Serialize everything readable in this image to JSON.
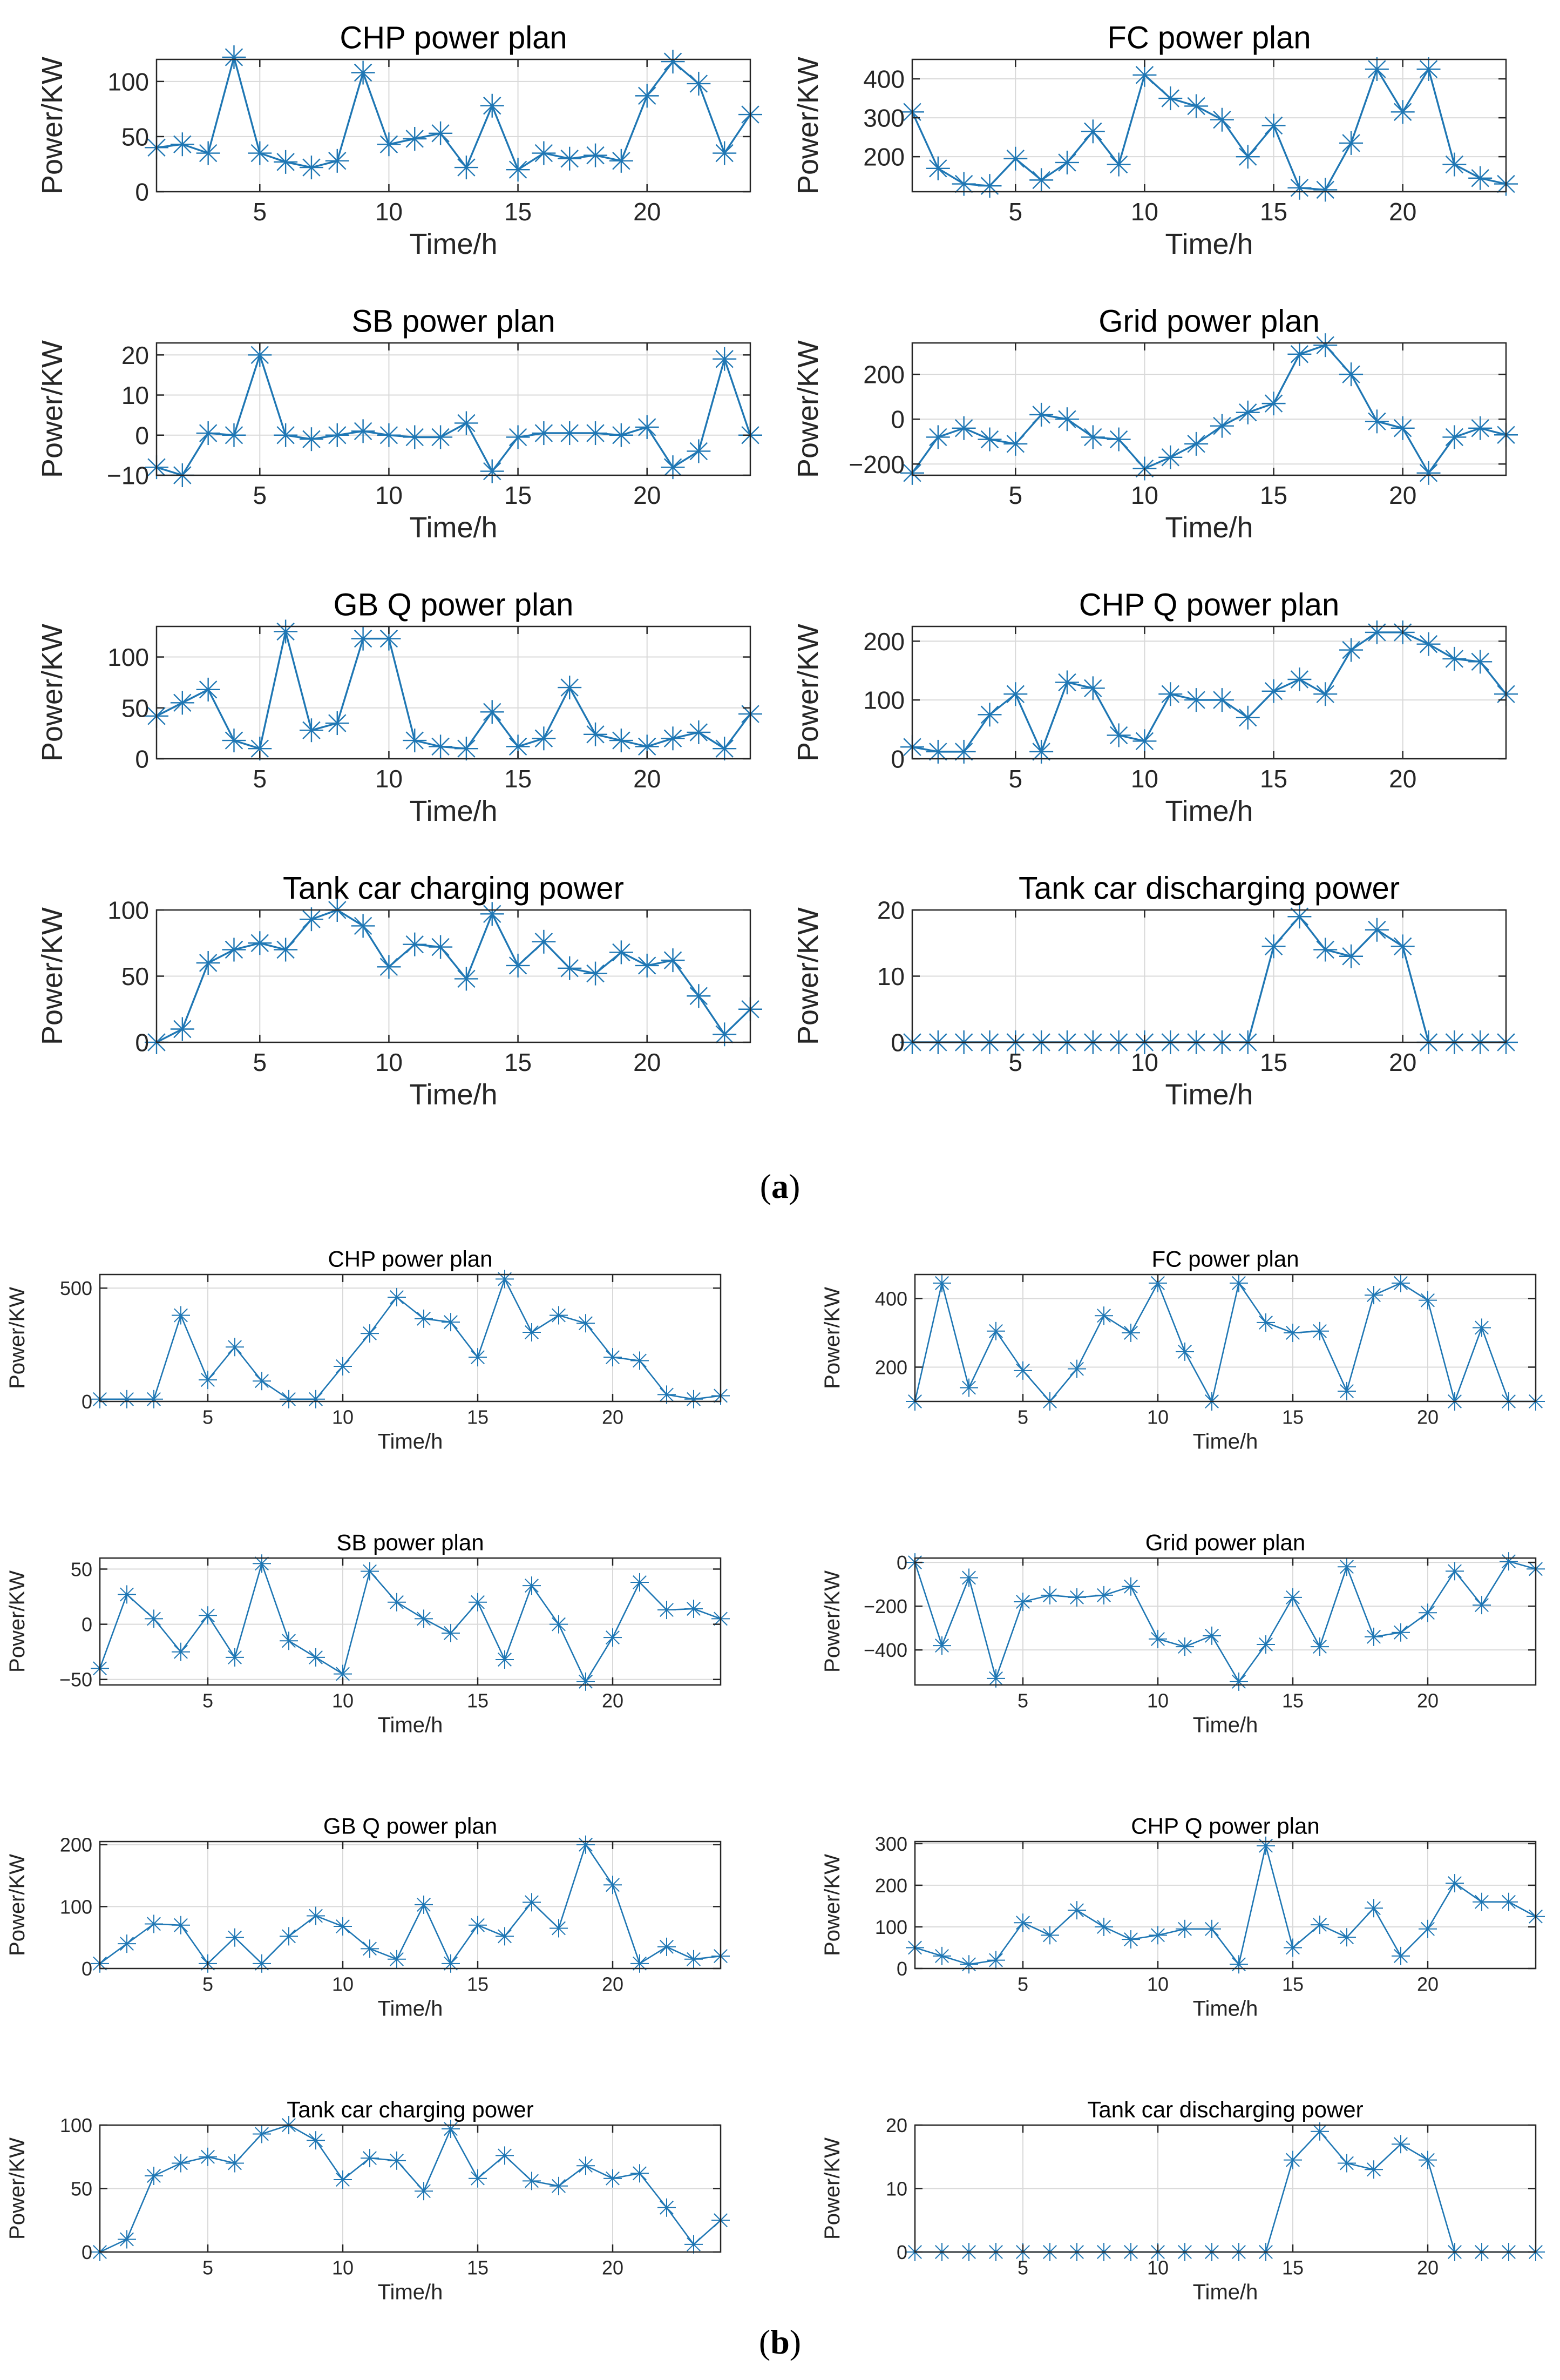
{
  "figure": {
    "panel_a_label": "a",
    "panel_b_label": "b"
  },
  "style": {
    "series_color": "#1f77b4",
    "grid_color": "#d9d9d9",
    "axis_color": "#262626"
  },
  "chart_data": [
    {
      "panel": "a",
      "type": "line",
      "title": "CHP power plan",
      "xlabel": "Time/h",
      "ylabel": "Power/KW",
      "xlim": [
        1,
        24
      ],
      "ylim": [
        0,
        120
      ],
      "xticks": [
        5,
        10,
        15,
        20
      ],
      "yticks": [
        0,
        50,
        100
      ],
      "grid": true,
      "marker": "asterisk",
      "x": [
        1,
        2,
        3,
        4,
        5,
        6,
        7,
        8,
        9,
        10,
        11,
        12,
        13,
        14,
        15,
        16,
        17,
        18,
        19,
        20,
        21,
        22,
        23,
        24
      ],
      "values": [
        40,
        43,
        35,
        122,
        35,
        27,
        22,
        28,
        108,
        43,
        48,
        53,
        22,
        78,
        20,
        35,
        30,
        33,
        28,
        87,
        118,
        98,
        35,
        70
      ]
    },
    {
      "panel": "a",
      "type": "line",
      "title": "FC power plan",
      "xlabel": "Time/h",
      "ylabel": "Power/KW",
      "xlim": [
        1,
        24
      ],
      "ylim": [
        110,
        450
      ],
      "xticks": [
        5,
        10,
        15,
        20
      ],
      "yticks": [
        200,
        300,
        400
      ],
      "grid": true,
      "marker": "asterisk",
      "x": [
        1,
        2,
        3,
        4,
        5,
        6,
        7,
        8,
        9,
        10,
        11,
        12,
        13,
        14,
        15,
        16,
        17,
        18,
        19,
        20,
        21,
        22,
        23,
        24
      ],
      "values": [
        315,
        170,
        130,
        125,
        195,
        140,
        185,
        265,
        180,
        410,
        350,
        330,
        295,
        200,
        280,
        120,
        115,
        235,
        425,
        315,
        425,
        180,
        145,
        130
      ]
    },
    {
      "panel": "a",
      "type": "line",
      "title": "SB power plan",
      "xlabel": "Time/h",
      "ylabel": "Power/KW",
      "xlim": [
        1,
        24
      ],
      "ylim": [
        -10,
        23
      ],
      "xticks": [
        5,
        10,
        15,
        20
      ],
      "yticks": [
        -10,
        0,
        10,
        20
      ],
      "grid": true,
      "marker": "asterisk",
      "x": [
        1,
        2,
        3,
        4,
        5,
        6,
        7,
        8,
        9,
        10,
        11,
        12,
        13,
        14,
        15,
        16,
        17,
        18,
        19,
        20,
        21,
        22,
        23,
        24
      ],
      "values": [
        -8,
        -10,
        0.5,
        0,
        20,
        0,
        -1,
        0,
        1,
        0,
        -0.5,
        -0.5,
        3,
        -9,
        -0.5,
        0.5,
        0.5,
        0.5,
        0,
        2,
        -8,
        -4,
        19,
        0
      ]
    },
    {
      "panel": "a",
      "type": "line",
      "title": "Grid power plan",
      "xlabel": "Time/h",
      "ylabel": "Power/KW",
      "xlim": [
        1,
        24
      ],
      "ylim": [
        -250,
        340
      ],
      "xticks": [
        5,
        10,
        15,
        20
      ],
      "yticks": [
        -200,
        0,
        200
      ],
      "grid": true,
      "marker": "asterisk",
      "x": [
        1,
        2,
        3,
        4,
        5,
        6,
        7,
        8,
        9,
        10,
        11,
        12,
        13,
        14,
        15,
        16,
        17,
        18,
        19,
        20,
        21,
        22,
        23,
        24
      ],
      "values": [
        -240,
        -80,
        -40,
        -90,
        -110,
        20,
        0,
        -80,
        -90,
        -220,
        -170,
        -110,
        -30,
        30,
        70,
        290,
        330,
        200,
        -10,
        -40,
        -240,
        -80,
        -40,
        -70
      ]
    },
    {
      "panel": "a",
      "type": "line",
      "title": "GB Q power plan",
      "xlabel": "Time/h",
      "ylabel": "Power/KW",
      "xlim": [
        1,
        24
      ],
      "ylim": [
        0,
        130
      ],
      "xticks": [
        5,
        10,
        15,
        20
      ],
      "yticks": [
        0,
        50,
        100
      ],
      "grid": true,
      "marker": "asterisk",
      "x": [
        1,
        2,
        3,
        4,
        5,
        6,
        7,
        8,
        9,
        10,
        11,
        12,
        13,
        14,
        15,
        16,
        17,
        18,
        19,
        20,
        21,
        22,
        23,
        24
      ],
      "values": [
        42,
        55,
        68,
        18,
        10,
        125,
        28,
        35,
        118,
        118,
        18,
        12,
        10,
        46,
        12,
        20,
        70,
        24,
        18,
        12,
        20,
        26,
        10,
        44
      ]
    },
    {
      "panel": "a",
      "type": "line",
      "title": "CHP Q power plan",
      "xlabel": "Time/h",
      "ylabel": "Power/KW",
      "xlim": [
        1,
        24
      ],
      "ylim": [
        0,
        225
      ],
      "xticks": [
        5,
        10,
        15,
        20
      ],
      "yticks": [
        0,
        100,
        200
      ],
      "grid": true,
      "marker": "asterisk",
      "x": [
        1,
        2,
        3,
        4,
        5,
        6,
        7,
        8,
        9,
        10,
        11,
        12,
        13,
        14,
        15,
        16,
        17,
        18,
        19,
        20,
        21,
        22,
        23,
        24
      ],
      "values": [
        20,
        12,
        12,
        75,
        110,
        12,
        130,
        120,
        40,
        30,
        110,
        100,
        100,
        70,
        115,
        135,
        110,
        185,
        215,
        215,
        195,
        170,
        165,
        110
      ]
    },
    {
      "panel": "a",
      "type": "line",
      "title": "Tank car charging power",
      "xlabel": "Time/h",
      "ylabel": "Power/KW",
      "xlim": [
        1,
        24
      ],
      "ylim": [
        0,
        100
      ],
      "xticks": [
        5,
        10,
        15,
        20
      ],
      "yticks": [
        0,
        50,
        100
      ],
      "grid": true,
      "marker": "asterisk",
      "x": [
        1,
        2,
        3,
        4,
        5,
        6,
        7,
        8,
        9,
        10,
        11,
        12,
        13,
        14,
        15,
        16,
        17,
        18,
        19,
        20,
        21,
        22,
        23,
        24
      ],
      "values": [
        0,
        10,
        60,
        70,
        75,
        70,
        93,
        100,
        88,
        57,
        74,
        72,
        48,
        97,
        58,
        76,
        56,
        52,
        68,
        58,
        62,
        35,
        6,
        25
      ]
    },
    {
      "panel": "a",
      "type": "line",
      "title": "Tank car discharging power",
      "xlabel": "Time/h",
      "ylabel": "Power/KW",
      "xlim": [
        1,
        24
      ],
      "ylim": [
        0,
        20
      ],
      "xticks": [
        5,
        10,
        15,
        20
      ],
      "yticks": [
        0,
        10,
        20
      ],
      "grid": true,
      "marker": "asterisk",
      "x": [
        1,
        2,
        3,
        4,
        5,
        6,
        7,
        8,
        9,
        10,
        11,
        12,
        13,
        14,
        15,
        16,
        17,
        18,
        19,
        20,
        21,
        22,
        23,
        24
      ],
      "values": [
        0,
        0,
        0,
        0,
        0,
        0,
        0,
        0,
        0,
        0,
        0,
        0,
        0,
        0,
        14.5,
        19,
        14,
        13,
        17,
        14.5,
        0,
        0,
        0,
        0
      ]
    },
    {
      "panel": "b",
      "type": "line",
      "title": "CHP power plan",
      "xlabel": "Time/h",
      "ylabel": "Power/KW",
      "xlim": [
        1,
        24
      ],
      "ylim": [
        0,
        560
      ],
      "xticks": [
        5,
        10,
        15,
        20
      ],
      "yticks": [
        0,
        500
      ],
      "grid": true,
      "marker": "asterisk",
      "x": [
        1,
        2,
        3,
        4,
        5,
        6,
        7,
        8,
        9,
        10,
        11,
        12,
        13,
        14,
        15,
        16,
        17,
        18,
        19,
        20,
        21,
        22,
        23,
        24
      ],
      "values": [
        10,
        10,
        10,
        380,
        95,
        240,
        90,
        10,
        10,
        155,
        300,
        460,
        365,
        350,
        195,
        540,
        305,
        380,
        345,
        195,
        180,
        30,
        10,
        25
      ]
    },
    {
      "panel": "b",
      "type": "line",
      "title": "FC power plan",
      "xlabel": "Time/h",
      "ylabel": "Power/KW",
      "xlim": [
        1,
        24
      ],
      "ylim": [
        100,
        470
      ],
      "xticks": [
        5,
        10,
        15,
        20
      ],
      "yticks": [
        200,
        400
      ],
      "grid": true,
      "marker": "asterisk",
      "x": [
        1,
        2,
        3,
        4,
        5,
        6,
        7,
        8,
        9,
        10,
        11,
        12,
        13,
        14,
        15,
        16,
        17,
        18,
        19,
        20,
        21,
        22,
        23,
        24
      ],
      "values": [
        100,
        445,
        140,
        305,
        190,
        100,
        195,
        350,
        300,
        445,
        245,
        100,
        445,
        330,
        300,
        305,
        130,
        410,
        445,
        395,
        100,
        315,
        100,
        100
      ]
    },
    {
      "panel": "b",
      "type": "line",
      "title": "SB power plan",
      "xlabel": "Time/h",
      "ylabel": "Power/KW",
      "xlim": [
        1,
        24
      ],
      "ylim": [
        -55,
        60
      ],
      "xticks": [
        5,
        10,
        15,
        20
      ],
      "yticks": [
        -50,
        0,
        50
      ],
      "grid": true,
      "marker": "asterisk",
      "x": [
        1,
        2,
        3,
        4,
        5,
        6,
        7,
        8,
        9,
        10,
        11,
        12,
        13,
        14,
        15,
        16,
        17,
        18,
        19,
        20,
        21,
        22,
        23,
        24
      ],
      "values": [
        -40,
        27,
        5,
        -25,
        8,
        -30,
        55,
        -15,
        -30,
        -45,
        48,
        20,
        5,
        -8,
        20,
        -32,
        35,
        0,
        -52,
        -12,
        38,
        13,
        14,
        5
      ]
    },
    {
      "panel": "b",
      "type": "line",
      "title": "Grid power plan",
      "xlabel": "Time/h",
      "ylabel": "Power/KW",
      "xlim": [
        1,
        24
      ],
      "ylim": [
        -560,
        20
      ],
      "xticks": [
        5,
        10,
        15,
        20
      ],
      "yticks": [
        -400,
        -200,
        0
      ],
      "grid": true,
      "marker": "asterisk",
      "x": [
        1,
        2,
        3,
        4,
        5,
        6,
        7,
        8,
        9,
        10,
        11,
        12,
        13,
        14,
        15,
        16,
        17,
        18,
        19,
        20,
        21,
        22,
        23,
        24
      ],
      "values": [
        0,
        -380,
        -70,
        -530,
        -180,
        -150,
        -160,
        -150,
        -110,
        -350,
        -385,
        -335,
        -545,
        -375,
        -160,
        -385,
        -20,
        -340,
        -320,
        -230,
        -40,
        -195,
        5,
        -30
      ]
    },
    {
      "panel": "b",
      "type": "line",
      "title": "GB Q power plan",
      "xlabel": "Time/h",
      "ylabel": "Power/KW",
      "xlim": [
        1,
        24
      ],
      "ylim": [
        0,
        205
      ],
      "xticks": [
        5,
        10,
        15,
        20
      ],
      "yticks": [
        0,
        100,
        200
      ],
      "grid": true,
      "marker": "asterisk",
      "x": [
        1,
        2,
        3,
        4,
        5,
        6,
        7,
        8,
        9,
        10,
        11,
        12,
        13,
        14,
        15,
        16,
        17,
        18,
        19,
        20,
        21,
        22,
        23,
        24
      ],
      "values": [
        8,
        40,
        72,
        70,
        8,
        50,
        8,
        52,
        85,
        68,
        32,
        15,
        103,
        8,
        70,
        52,
        107,
        65,
        200,
        135,
        8,
        35,
        15,
        20
      ]
    },
    {
      "panel": "b",
      "type": "line",
      "title": "CHP Q power plan",
      "xlabel": "Time/h",
      "ylabel": "Power/KW",
      "xlim": [
        1,
        24
      ],
      "ylim": [
        0,
        305
      ],
      "xticks": [
        5,
        10,
        15,
        20
      ],
      "yticks": [
        0,
        100,
        200,
        300
      ],
      "grid": true,
      "marker": "asterisk",
      "x": [
        1,
        2,
        3,
        4,
        5,
        6,
        7,
        8,
        9,
        10,
        11,
        12,
        13,
        14,
        15,
        16,
        17,
        18,
        19,
        20,
        21,
        22,
        23,
        24
      ],
      "values": [
        50,
        30,
        10,
        20,
        110,
        80,
        140,
        100,
        70,
        80,
        95,
        95,
        10,
        295,
        50,
        105,
        75,
        145,
        30,
        95,
        205,
        160,
        160,
        125
      ]
    },
    {
      "panel": "b",
      "type": "line",
      "title": "Tank car charging power",
      "xlabel": "Time/h",
      "ylabel": "Power/KW",
      "xlim": [
        1,
        24
      ],
      "ylim": [
        0,
        100
      ],
      "xticks": [
        5,
        10,
        15,
        20
      ],
      "yticks": [
        0,
        50,
        100
      ],
      "grid": true,
      "marker": "asterisk",
      "x": [
        1,
        2,
        3,
        4,
        5,
        6,
        7,
        8,
        9,
        10,
        11,
        12,
        13,
        14,
        15,
        16,
        17,
        18,
        19,
        20,
        21,
        22,
        23,
        24
      ],
      "values": [
        0,
        10,
        60,
        70,
        75,
        70,
        93,
        100,
        88,
        57,
        74,
        72,
        48,
        97,
        58,
        76,
        56,
        52,
        68,
        58,
        62,
        35,
        6,
        25
      ]
    },
    {
      "panel": "b",
      "type": "line",
      "title": "Tank car discharging power",
      "xlabel": "Time/h",
      "ylabel": "Power/KW",
      "xlim": [
        1,
        24
      ],
      "ylim": [
        0,
        20
      ],
      "xticks": [
        5,
        10,
        15,
        20
      ],
      "yticks": [
        0,
        10,
        20
      ],
      "grid": true,
      "marker": "asterisk",
      "x": [
        1,
        2,
        3,
        4,
        5,
        6,
        7,
        8,
        9,
        10,
        11,
        12,
        13,
        14,
        15,
        16,
        17,
        18,
        19,
        20,
        21,
        22,
        23,
        24
      ],
      "values": [
        0,
        0,
        0,
        0,
        0,
        0,
        0,
        0,
        0,
        0,
        0,
        0,
        0,
        0,
        14.5,
        19,
        14,
        13,
        17,
        14.5,
        0,
        0,
        0,
        0
      ]
    }
  ]
}
